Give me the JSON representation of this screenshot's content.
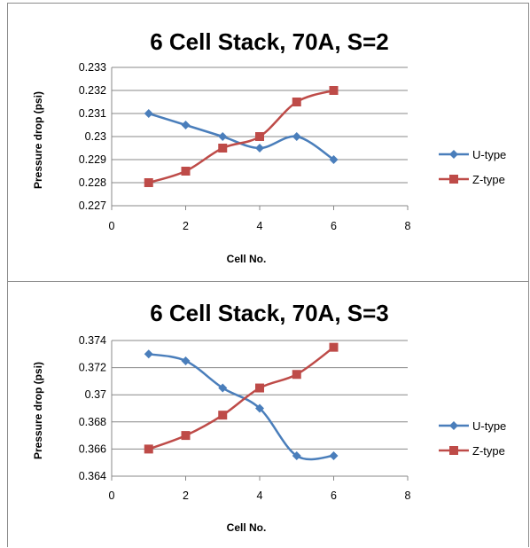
{
  "chart_data": [
    {
      "type": "line",
      "title": "6 Cell Stack, 70A, S=2",
      "xlabel": "Cell No.",
      "ylabel": "Pressure drop (psi)",
      "xlim": [
        0,
        8
      ],
      "ylim": [
        0.227,
        0.233
      ],
      "xticks": [
        "0",
        "2",
        "4",
        "6",
        "8"
      ],
      "yticks": [
        "0.227",
        "0.228",
        "0.229",
        "0.23",
        "0.231",
        "0.232",
        "0.233"
      ],
      "grid": true,
      "legend": "right",
      "x": [
        1,
        2,
        3,
        4,
        5,
        6
      ],
      "series": [
        {
          "name": "U-type",
          "color": "#4a7ebb",
          "marker": "diamond",
          "values": [
            0.231,
            0.2305,
            0.23,
            0.2295,
            0.23,
            0.229
          ]
        },
        {
          "name": "Z-type",
          "color": "#be4b48",
          "marker": "square",
          "values": [
            0.228,
            0.2285,
            0.2295,
            0.23,
            0.2315,
            0.232
          ]
        }
      ]
    },
    {
      "type": "line",
      "title": "6 Cell Stack, 70A, S=3",
      "xlabel": "Cell No.",
      "ylabel": "Pressure drop (psi)",
      "xlim": [
        0,
        8
      ],
      "ylim": [
        0.364,
        0.374
      ],
      "xticks": [
        "0",
        "2",
        "4",
        "6",
        "8"
      ],
      "yticks": [
        "0.364",
        "0.366",
        "0.368",
        "0.37",
        "0.372",
        "0.374"
      ],
      "grid": true,
      "legend": "right",
      "x": [
        1,
        2,
        3,
        4,
        5,
        6
      ],
      "series": [
        {
          "name": "U-type",
          "color": "#4a7ebb",
          "marker": "diamond",
          "values": [
            0.373,
            0.3725,
            0.3705,
            0.369,
            0.3655,
            0.3655
          ]
        },
        {
          "name": "Z-type",
          "color": "#be4b48",
          "marker": "square",
          "values": [
            0.366,
            0.367,
            0.3685,
            0.3705,
            0.3715,
            0.3735
          ]
        }
      ]
    }
  ]
}
